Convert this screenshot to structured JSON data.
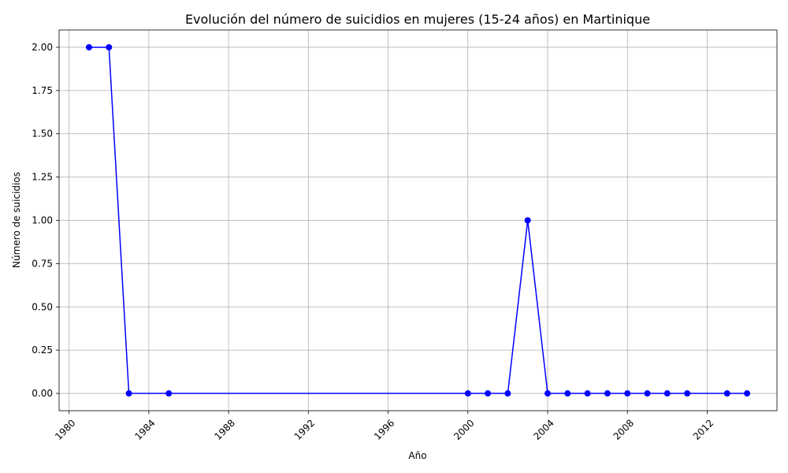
{
  "chart_data": {
    "type": "line",
    "title": "Evolución del número de suicidios en mujeres (15-24 años) en Martinique",
    "xlabel": "Año",
    "ylabel": "Número de suicidios",
    "xlim": [
      1979.5,
      2015.5
    ],
    "ylim": [
      -0.1,
      2.1
    ],
    "x_ticks": [
      1980,
      1984,
      1988,
      1992,
      1996,
      2000,
      2004,
      2008,
      2012
    ],
    "x_tick_labels": [
      "1980",
      "1984",
      "1988",
      "1992",
      "1996",
      "2000",
      "2004",
      "2008",
      "2012"
    ],
    "y_ticks": [
      0,
      0.25,
      0.5,
      0.75,
      1.0,
      1.25,
      1.5,
      1.75,
      2.0
    ],
    "y_tick_labels": [
      "0.00",
      "0.25",
      "0.50",
      "0.75",
      "1.00",
      "1.25",
      "1.50",
      "1.75",
      "2.00"
    ],
    "grid": true,
    "series": [
      {
        "color": "#0000ff",
        "marker": "circle",
        "x": [
          1981,
          1982,
          1983,
          1985,
          2000,
          2001,
          2002,
          2003,
          2004,
          2005,
          2006,
          2007,
          2008,
          2009,
          2010,
          2011,
          2013,
          2014
        ],
        "y": [
          2,
          2,
          0,
          0,
          0,
          0,
          0,
          1,
          0,
          0,
          0,
          0,
          0,
          0,
          0,
          0,
          0,
          0
        ]
      }
    ]
  }
}
